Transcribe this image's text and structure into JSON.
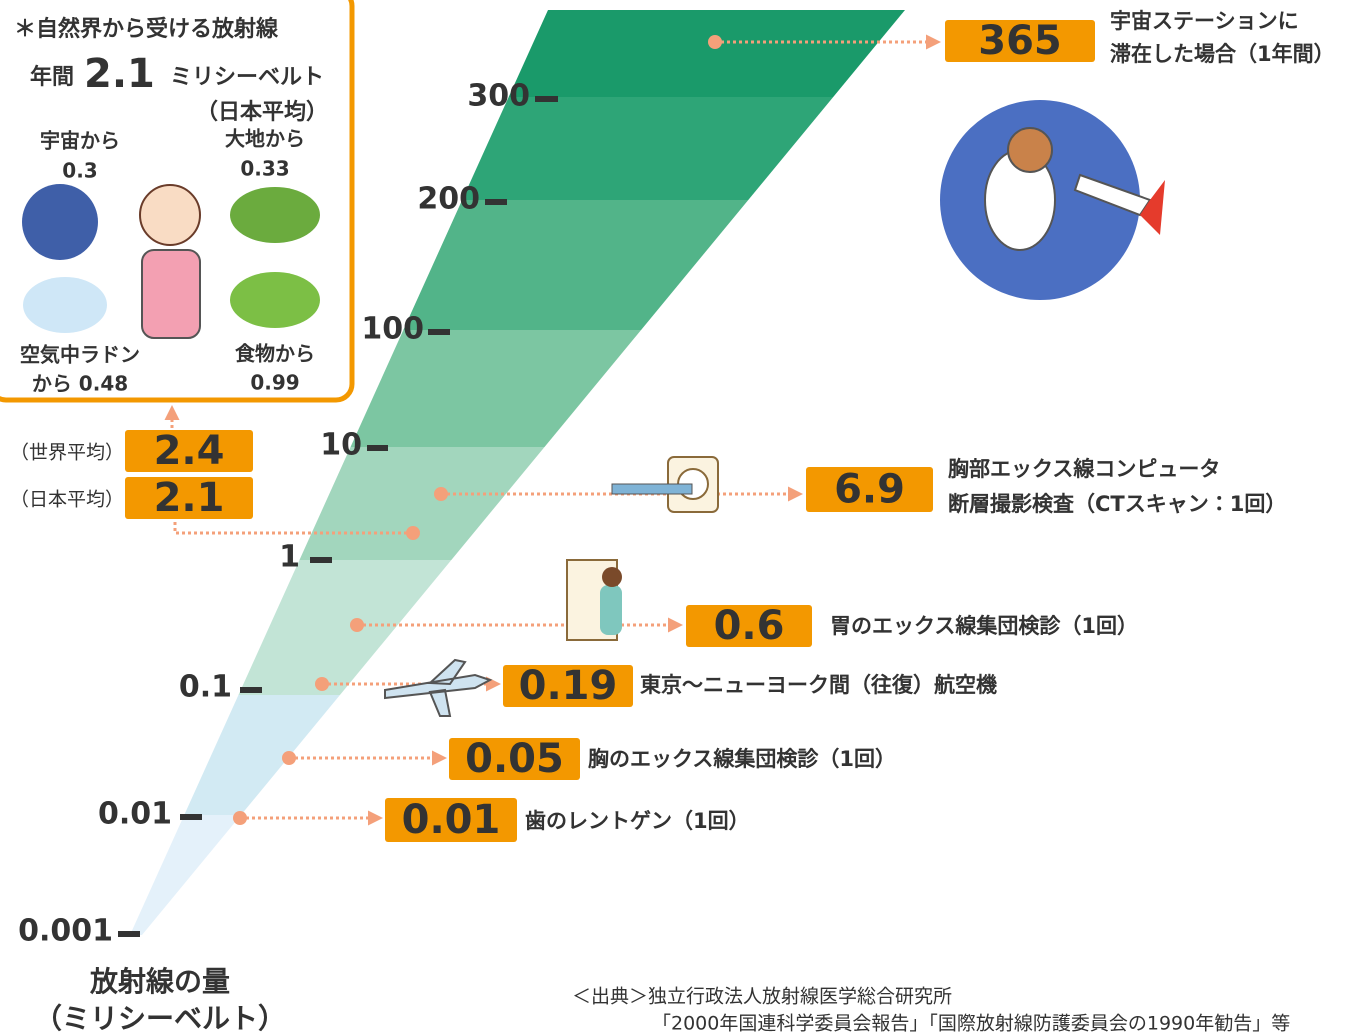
{
  "natural_box": {
    "title": "＊自然界から受ける放射線",
    "annual_prefix": "年間",
    "annual_value": "2.1",
    "annual_unit": "ミリシーベルト",
    "annual_note": "（日本平均）",
    "sources": [
      {
        "label": "宇宙から",
        "value": "0.3"
      },
      {
        "label": "大地から",
        "value": "0.33"
      },
      {
        "label": "空気中ラドン",
        "value": "から 0.48"
      },
      {
        "label": "食物から",
        "value": "0.99"
      }
    ]
  },
  "scale": {
    "ticks": [
      "300",
      "200",
      "100",
      "10",
      "1",
      "0.1",
      "0.01",
      "0.001"
    ],
    "axis_label": [
      "放射線の量",
      "（ミリシーベルト）"
    ]
  },
  "averages": [
    {
      "note": "（世界平均）",
      "value": "2.4"
    },
    {
      "note": "（日本平均）",
      "value": "2.1"
    }
  ],
  "items": [
    {
      "value": "365",
      "description": [
        "宇宙ステーションに",
        "滞在した場合（1年間）"
      ]
    },
    {
      "value": "6.9",
      "description": [
        "胸部エックス線コンピュータ",
        "断層撮影検査（CTスキャン：1回）"
      ]
    },
    {
      "value": "0.6",
      "description": [
        "胃のエックス線集団検診（1回）"
      ]
    },
    {
      "value": "0.19",
      "description": [
        "東京～ニューヨーク間（往復）航空機"
      ]
    },
    {
      "value": "0.05",
      "description": [
        "胸のエックス線集団検診（1回）"
      ]
    },
    {
      "value": "0.01",
      "description": [
        "歯のレントゲン（1回）"
      ]
    }
  ],
  "source": [
    "＜出典＞独立行政法人放射線医学総合研究所",
    "「2000年国連科学委員会報告」「国際放射線防護委員会の1990年勧告」等"
  ]
}
